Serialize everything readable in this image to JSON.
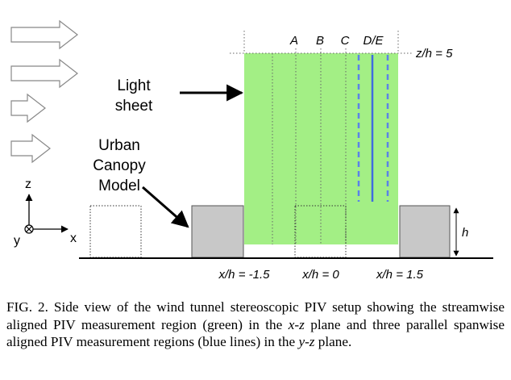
{
  "labels": {
    "light_sheet_line1": "Light",
    "light_sheet_line2": "sheet",
    "urban_line1": "Urban",
    "urban_line2": "Canopy",
    "urban_line3": "Model",
    "plane_A": "A",
    "plane_B": "B",
    "plane_C": "C",
    "plane_DE": "D/E",
    "zh_top": "z/h = 5",
    "h": "h",
    "axis_z": "z",
    "axis_x": "x",
    "axis_y": "y",
    "xh_left": "x/h = -1.5",
    "xh_center": "x/h = 0",
    "xh_right": "x/h = 1.5"
  },
  "caption": {
    "prefix": "FIG. 2.  Side view of the wind tunnel stereoscopic PIV setup showing the streamwise aligned PIV measurement region (green) in the ",
    "xz": "x-z",
    "middle": " plane and three parallel spanwise aligned PIV measurement regions (blue lines) in the ",
    "yz": "y-z",
    "suffix": " plane."
  },
  "colors": {
    "measurement_region": "#a3ef85",
    "block_fill": "#c8c8c8",
    "blue_line": "#3f6ae0",
    "blue_dashed": "#5b82e8"
  },
  "icons": [
    "flow-arrow-icon",
    "arrow-icon",
    "coordinate-axes-icon",
    "into-page-icon"
  ]
}
